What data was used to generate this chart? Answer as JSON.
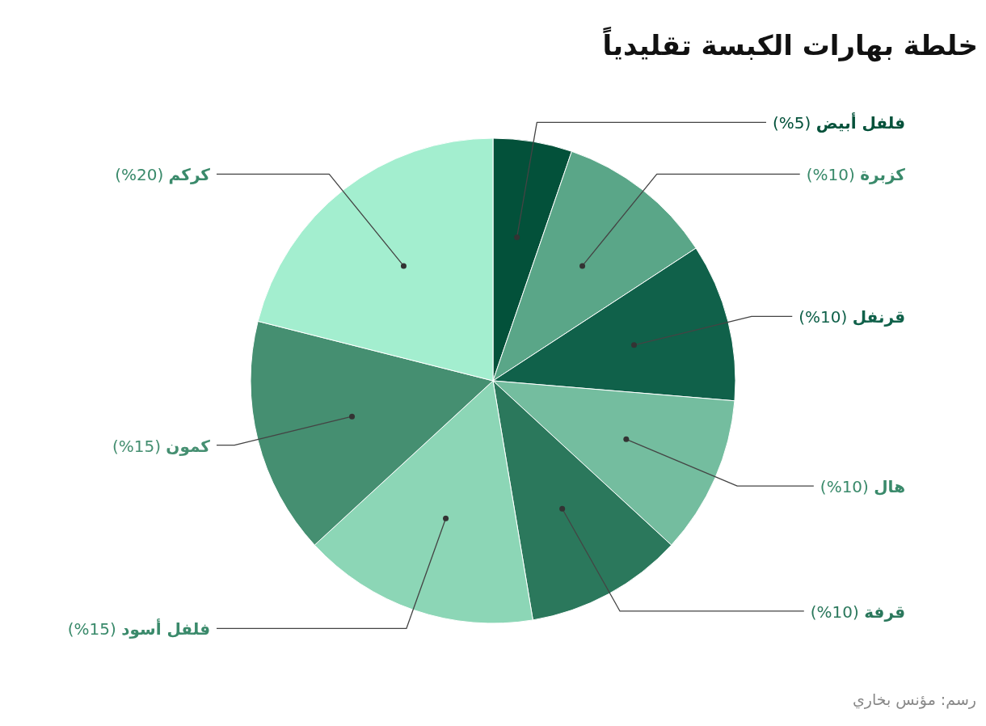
{
  "chart_data": {
    "type": "pie",
    "title": "خلطة بهارات الكبسة تقليدياً",
    "categories": [
      "فلفل أبيض",
      "كزبرة",
      "قرنفل",
      "هال",
      "قرفة",
      "فلفل أسود",
      "كمون",
      "كركم"
    ],
    "values": [
      5,
      10,
      10,
      10,
      10,
      15,
      15,
      20
    ],
    "value_labels": [
      "(5%)",
      "(10%)",
      "(10%)",
      "(10%)",
      "(10%)",
      "(15%)",
      "(15%)",
      "(20%)"
    ],
    "colors": [
      "#03513a",
      "#5aa688",
      "#10614a",
      "#74bd9f",
      "#2b785c",
      "#8cd6b6",
      "#458f71",
      "#a3eecf"
    ],
    "annotations": [
      "رسم: مؤنس بخاري"
    ]
  }
}
